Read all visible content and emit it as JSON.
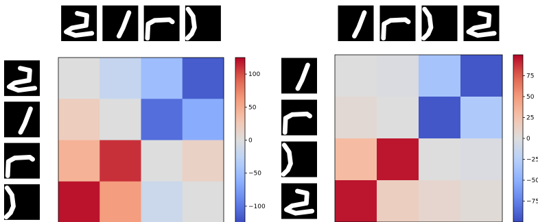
{
  "chart_data": [
    {
      "type": "heatmap",
      "title": "",
      "xlabel": "",
      "ylabel": "",
      "rows": 4,
      "cols": 4,
      "values": [
        [
          0,
          -20,
          -50,
          -115
        ],
        [
          20,
          0,
          -105,
          -65
        ],
        [
          45,
          110,
          0,
          15
        ],
        [
          120,
          60,
          -15,
          0
        ]
      ],
      "colormap": "coolwarm",
      "vmin": -125,
      "vmax": 125,
      "colorbar_ticks": [
        -100,
        -50,
        0,
        50,
        100
      ],
      "colorbar_tick_labels": [
        "−100",
        "−50",
        "0",
        "50",
        "100"
      ],
      "column_thumbnails": [
        "shape-a",
        "shape-b",
        "shape-c",
        "shape-d"
      ],
      "row_thumbnails": [
        "shape-a",
        "shape-b",
        "shape-c",
        "shape-d"
      ]
    },
    {
      "type": "heatmap",
      "title": "",
      "xlabel": "",
      "ylabel": "",
      "rows": 4,
      "cols": 4,
      "values": [
        [
          0,
          -3,
          -35,
          -95
        ],
        [
          5,
          0,
          -95,
          -30
        ],
        [
          30,
          95,
          0,
          -3
        ],
        [
          95,
          15,
          8,
          3
        ]
      ],
      "colormap": "coolwarm",
      "vmin": -100,
      "vmax": 100,
      "colorbar_ticks": [
        -75,
        -50,
        -25,
        0,
        25,
        50,
        75
      ],
      "colorbar_tick_labels": [
        "−75",
        "−50",
        "−25",
        "0",
        "25",
        "50",
        "75"
      ],
      "column_thumbnails": [
        "shape-b",
        "shape-c",
        "shape-d",
        "shape-a"
      ],
      "row_thumbnails": [
        "shape-b",
        "shape-c",
        "shape-d",
        "shape-a"
      ]
    }
  ]
}
